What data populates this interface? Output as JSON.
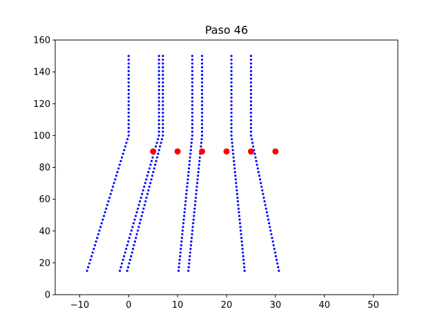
{
  "chart_data": {
    "type": "scatter",
    "title": "Paso 46",
    "xlabel": "",
    "ylabel": "",
    "xlim": [
      -15,
      55
    ],
    "ylim": [
      0,
      160
    ],
    "x_ticks": [
      -10,
      0,
      10,
      20,
      30,
      40,
      50
    ],
    "y_ticks": [
      0,
      20,
      40,
      60,
      80,
      100,
      120,
      140,
      160
    ],
    "grid": false,
    "legend": "none",
    "colors": {
      "trajectories": "#0000ff",
      "obstacles": "#ff0000"
    },
    "series": [
      {
        "kind": "trajectory",
        "color": "#0000ff",
        "segments": [
          {
            "x": [
              -8.5,
              0.0
            ],
            "y": [
              15,
              100
            ],
            "points": 38
          },
          {
            "x": [
              0.0,
              0.0
            ],
            "y": [
              100,
              150
            ],
            "points": 22
          }
        ]
      },
      {
        "kind": "trajectory",
        "color": "#0000ff",
        "segments": [
          {
            "x": [
              -1.8,
              6.2
            ],
            "y": [
              15,
              100
            ],
            "points": 38
          },
          {
            "x": [
              6.2,
              6.2
            ],
            "y": [
              100,
              150
            ],
            "points": 22
          }
        ]
      },
      {
        "kind": "trajectory",
        "color": "#0000ff",
        "segments": [
          {
            "x": [
              -0.3,
              7.0
            ],
            "y": [
              15,
              100
            ],
            "points": 38
          },
          {
            "x": [
              7.0,
              7.0
            ],
            "y": [
              100,
              150
            ],
            "points": 22
          }
        ]
      },
      {
        "kind": "trajectory",
        "color": "#0000ff",
        "segments": [
          {
            "x": [
              10.2,
              13.0
            ],
            "y": [
              15,
              100
            ],
            "points": 38
          },
          {
            "x": [
              13.0,
              13.0
            ],
            "y": [
              100,
              150
            ],
            "points": 22
          }
        ]
      },
      {
        "kind": "trajectory",
        "color": "#0000ff",
        "segments": [
          {
            "x": [
              12.2,
              15.0
            ],
            "y": [
              15,
              100
            ],
            "points": 38
          },
          {
            "x": [
              15.0,
              15.0
            ],
            "y": [
              100,
              150
            ],
            "points": 22
          }
        ]
      },
      {
        "kind": "trajectory",
        "color": "#0000ff",
        "segments": [
          {
            "x": [
              23.7,
              21.0
            ],
            "y": [
              15,
              100
            ],
            "points": 38
          },
          {
            "x": [
              21.0,
              21.0
            ],
            "y": [
              100,
              150
            ],
            "points": 22
          }
        ]
      },
      {
        "kind": "trajectory",
        "color": "#0000ff",
        "segments": [
          {
            "x": [
              30.7,
              25.0
            ],
            "y": [
              15,
              100
            ],
            "points": 38
          },
          {
            "x": [
              25.0,
              25.0
            ],
            "y": [
              100,
              150
            ],
            "points": 22
          }
        ]
      },
      {
        "kind": "obstacles",
        "color": "#ff0000",
        "x": [
          5,
          10,
          15,
          20,
          25,
          30
        ],
        "y": [
          90,
          90,
          90,
          90,
          90,
          90
        ]
      }
    ]
  }
}
